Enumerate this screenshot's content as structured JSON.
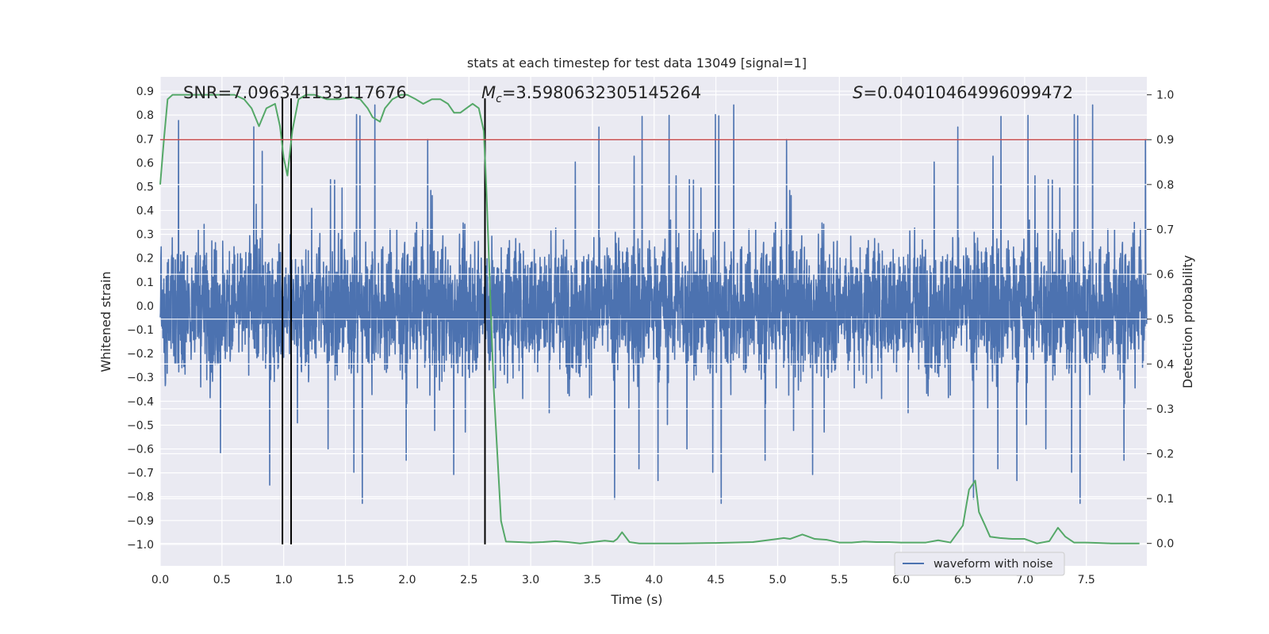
{
  "chart_data": {
    "type": "line",
    "title": "stats at each timestep for test data 13049 [signal=1]",
    "xlabel": "Time (s)",
    "ylabel": "Whitened strain",
    "ylabel_right": "Detection probability",
    "xlim": [
      0.0,
      7.99
    ],
    "ylim": [
      -1.09,
      0.96
    ],
    "ylim_right": [
      -0.05,
      1.04
    ],
    "xticks": [
      "0.0",
      "0.5",
      "1.0",
      "1.5",
      "2.0",
      "2.5",
      "3.0",
      "3.5",
      "4.0",
      "4.5",
      "5.0",
      "5.5",
      "6.0",
      "6.5",
      "7.0",
      "7.5"
    ],
    "yticks": [
      "−1.0",
      "−0.9",
      "−0.8",
      "−0.7",
      "−0.6",
      "−0.5",
      "−0.4",
      "−0.3",
      "−0.2",
      "−0.1",
      "0.0",
      "0.1",
      "0.2",
      "0.3",
      "0.4",
      "0.5",
      "0.6",
      "0.7",
      "0.8",
      "0.9"
    ],
    "yticks_right": [
      "0.0",
      "0.1",
      "0.2",
      "0.3",
      "0.4",
      "0.5",
      "0.6",
      "0.7",
      "0.8",
      "0.9",
      "1.0"
    ],
    "grid": true,
    "legend_position": "lower-right",
    "annotations": {
      "snr": "SNR=7.096341133117676",
      "mc_symbol": "M",
      "mc_sub": "c",
      "mc_value": "=3.5980632305145264",
      "s_symbol": "S",
      "s_value": "=0.04010464996099472"
    },
    "series": [
      {
        "name": "waveform with noise",
        "kind": "noise",
        "sample_rate": 512,
        "typical_max_abs": 0.35,
        "peak_max": 0.87,
        "peak_min": -1.0,
        "color": "#4c72b0"
      },
      {
        "kind": "probability",
        "axis": "right",
        "color": "#55a868",
        "x": [
          0.0,
          0.03,
          0.06,
          0.1,
          0.2,
          0.3,
          0.4,
          0.5,
          0.6,
          0.68,
          0.74,
          0.8,
          0.86,
          0.93,
          0.97,
          1.0,
          1.03,
          1.07,
          1.12,
          1.18,
          1.25,
          1.35,
          1.45,
          1.55,
          1.62,
          1.68,
          1.72,
          1.78,
          1.82,
          1.88,
          1.95,
          2.0,
          2.07,
          2.13,
          2.2,
          2.27,
          2.33,
          2.38,
          2.43,
          2.48,
          2.53,
          2.58,
          2.62,
          2.64,
          2.7,
          2.76,
          2.8,
          2.9,
          3.0,
          3.1,
          3.2,
          3.3,
          3.4,
          3.5,
          3.6,
          3.67,
          3.7,
          3.74,
          3.8,
          3.88,
          4.0,
          4.2,
          4.5,
          4.8,
          5.0,
          5.05,
          5.1,
          5.2,
          5.3,
          5.4,
          5.5,
          5.6,
          5.7,
          5.8,
          5.9,
          6.0,
          6.1,
          6.2,
          6.3,
          6.4,
          6.5,
          6.55,
          6.6,
          6.63,
          6.68,
          6.72,
          6.8,
          6.9,
          7.0,
          7.1,
          7.2,
          7.27,
          7.33,
          7.4,
          7.5,
          7.6,
          7.7,
          7.8,
          7.93
        ],
        "y": [
          0.8,
          0.9,
          0.99,
          1.0,
          1.0,
          1.0,
          1.0,
          1.0,
          1.0,
          0.99,
          0.97,
          0.93,
          0.97,
          0.98,
          0.93,
          0.86,
          0.82,
          0.92,
          0.99,
          1.0,
          1.0,
          0.99,
          0.99,
          0.995,
          0.99,
          0.97,
          0.95,
          0.94,
          0.97,
          0.99,
          1.0,
          1.0,
          0.99,
          0.98,
          0.99,
          0.99,
          0.98,
          0.96,
          0.96,
          0.97,
          0.98,
          0.97,
          0.92,
          0.8,
          0.35,
          0.05,
          0.004,
          0.003,
          0.002,
          0.003,
          0.005,
          0.003,
          0.0,
          0.003,
          0.006,
          0.004,
          0.01,
          0.025,
          0.003,
          0.0,
          0.0,
          0.0,
          0.001,
          0.003,
          0.01,
          0.012,
          0.01,
          0.02,
          0.01,
          0.008,
          0.002,
          0.002,
          0.004,
          0.003,
          0.003,
          0.002,
          0.002,
          0.002,
          0.007,
          0.002,
          0.04,
          0.12,
          0.14,
          0.07,
          0.04,
          0.015,
          0.012,
          0.01,
          0.01,
          0.0,
          0.005,
          0.035,
          0.015,
          0.002,
          0.002,
          0.001,
          0.0,
          0.0,
          0.0
        ]
      }
    ],
    "hlines_right": [
      {
        "value": 0.9,
        "color": "#c44e52"
      }
    ],
    "vlines": [
      {
        "x": 0.99,
        "ymin": -1.0,
        "ymax": 0.87,
        "color": "#000000"
      },
      {
        "x": 1.06,
        "ymin": -1.0,
        "ymax": 0.87,
        "color": "#000000"
      },
      {
        "x": 2.63,
        "ymin": -1.0,
        "ymax": 0.87,
        "color": "#000000"
      }
    ]
  }
}
